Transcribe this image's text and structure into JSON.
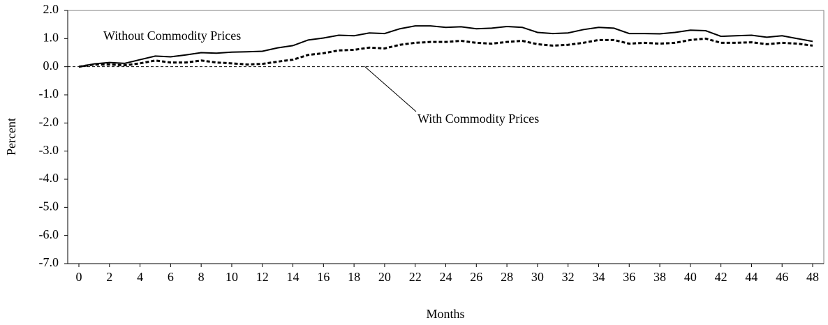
{
  "chart_data": {
    "type": "line",
    "x_label": "Months",
    "y_label": "Percent",
    "x": [
      0,
      1,
      2,
      3,
      4,
      5,
      6,
      7,
      8,
      9,
      10,
      11,
      12,
      13,
      14,
      15,
      16,
      17,
      18,
      19,
      20,
      21,
      22,
      23,
      24,
      25,
      26,
      27,
      28,
      29,
      30,
      31,
      32,
      33,
      34,
      35,
      36,
      37,
      38,
      39,
      40,
      41,
      42,
      43,
      44,
      45,
      46,
      47,
      48
    ],
    "series": [
      {
        "name": "Without Commodity Prices",
        "color": "#000000",
        "dashed": false,
        "values": [
          0.0,
          0.1,
          0.15,
          0.12,
          0.25,
          0.38,
          0.35,
          0.42,
          0.5,
          0.48,
          0.52,
          0.53,
          0.55,
          0.67,
          0.75,
          0.95,
          1.02,
          1.12,
          1.1,
          1.2,
          1.18,
          1.35,
          1.45,
          1.45,
          1.4,
          1.42,
          1.35,
          1.37,
          1.43,
          1.4,
          1.22,
          1.18,
          1.2,
          1.32,
          1.4,
          1.37,
          1.18,
          1.18,
          1.17,
          1.22,
          1.3,
          1.28,
          1.08,
          1.1,
          1.12,
          1.05,
          1.1,
          1.0,
          0.9
        ]
      },
      {
        "name": "With Commodity Prices",
        "color": "#000000",
        "dashed": true,
        "values": [
          0.0,
          0.08,
          0.08,
          0.05,
          0.12,
          0.22,
          0.15,
          0.15,
          0.22,
          0.15,
          0.12,
          0.08,
          0.1,
          0.18,
          0.25,
          0.42,
          0.48,
          0.58,
          0.6,
          0.68,
          0.65,
          0.78,
          0.85,
          0.88,
          0.88,
          0.92,
          0.85,
          0.82,
          0.88,
          0.92,
          0.8,
          0.75,
          0.78,
          0.85,
          0.95,
          0.95,
          0.82,
          0.85,
          0.82,
          0.85,
          0.95,
          1.0,
          0.85,
          0.85,
          0.87,
          0.8,
          0.85,
          0.82,
          0.75
        ]
      }
    ],
    "xlim": [
      -0.73,
      48.73
    ],
    "xticks": [
      0,
      2,
      4,
      6,
      8,
      10,
      12,
      14,
      16,
      18,
      20,
      22,
      24,
      26,
      28,
      30,
      32,
      34,
      36,
      38,
      40,
      42,
      44,
      46,
      48
    ],
    "ylim": [
      -7,
      2
    ],
    "yticks": [
      {
        "value": 2,
        "label": "2.0"
      },
      {
        "value": 1,
        "label": "1.0"
      },
      {
        "value": 0,
        "label": "0.0"
      },
      {
        "value": -1,
        "label": "-1.0"
      },
      {
        "value": -2,
        "label": "-2.0"
      },
      {
        "value": -3,
        "label": "-3.0"
      },
      {
        "value": -4,
        "label": "-4.0"
      },
      {
        "value": -5,
        "label": "-5.0"
      },
      {
        "value": -6,
        "label": "-6.0"
      },
      {
        "value": -7,
        "label": "-7.0"
      }
    ],
    "zero_line": true
  }
}
